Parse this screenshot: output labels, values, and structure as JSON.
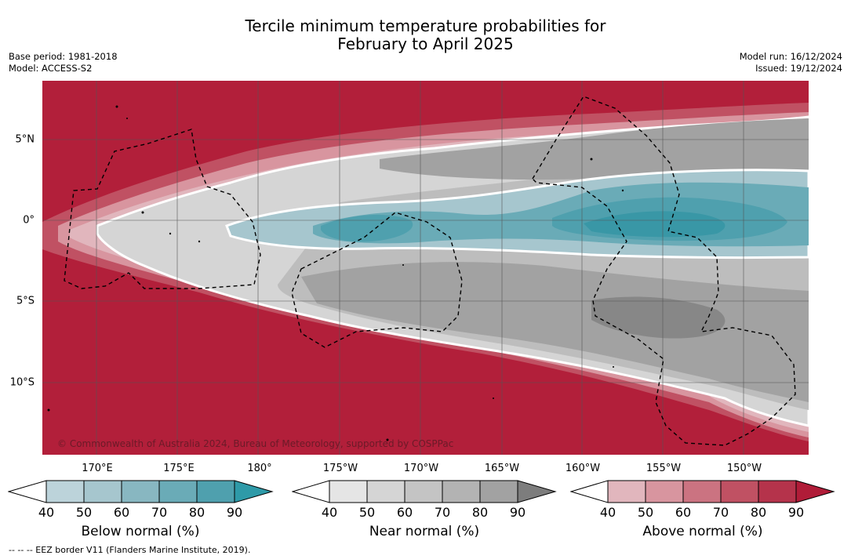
{
  "title_line1": "Tercile minimum temperature probabilities for",
  "title_line2": "February to April 2025",
  "base_period": "Base period: 1981-2018",
  "model": "Model: ACCESS-S2",
  "model_run": "Model run: 16/12/2024",
  "issued": "Issued: 19/12/2024",
  "map": {
    "lat_labels": [
      "5°N",
      "0°",
      "5°S",
      "10°S"
    ],
    "lon_labels": [
      "170°E",
      "175°E",
      "180°",
      "175°W",
      "170°W",
      "165°W",
      "160°W",
      "155°W",
      "150°W"
    ],
    "copyright": "© Commonwealth of Australia 2024, Bureau of Meteorology, supported by COSPPac",
    "colors": {
      "below": "#2e9aa8",
      "near": "#9a9a9a",
      "above": "#b21f3a"
    }
  },
  "colorbars": [
    {
      "title": "Below normal (%)",
      "ticks": [
        "40",
        "50",
        "60",
        "70",
        "80",
        "90"
      ],
      "colors": [
        "#bcd3da",
        "#a6c6ce",
        "#88b7c1",
        "#6aabb7",
        "#4fa0ae",
        "#2e9aa8"
      ]
    },
    {
      "title": "Near normal (%)",
      "ticks": [
        "40",
        "50",
        "60",
        "70",
        "80",
        "90"
      ],
      "colors": [
        "#e5e5e5",
        "#d5d5d5",
        "#c4c4c4",
        "#b3b3b3",
        "#a2a2a2",
        "#7d7d7d"
      ]
    },
    {
      "title": "Above normal (%)",
      "ticks": [
        "40",
        "50",
        "60",
        "70",
        "80",
        "90"
      ],
      "colors": [
        "#e1b6bd",
        "#d8959f",
        "#cb7381",
        "#c05163",
        "#b5334b",
        "#b01c38"
      ]
    }
  ],
  "footer": "--  --  -- EEZ border V11 (Flanders Marine Institute, 2019)."
}
